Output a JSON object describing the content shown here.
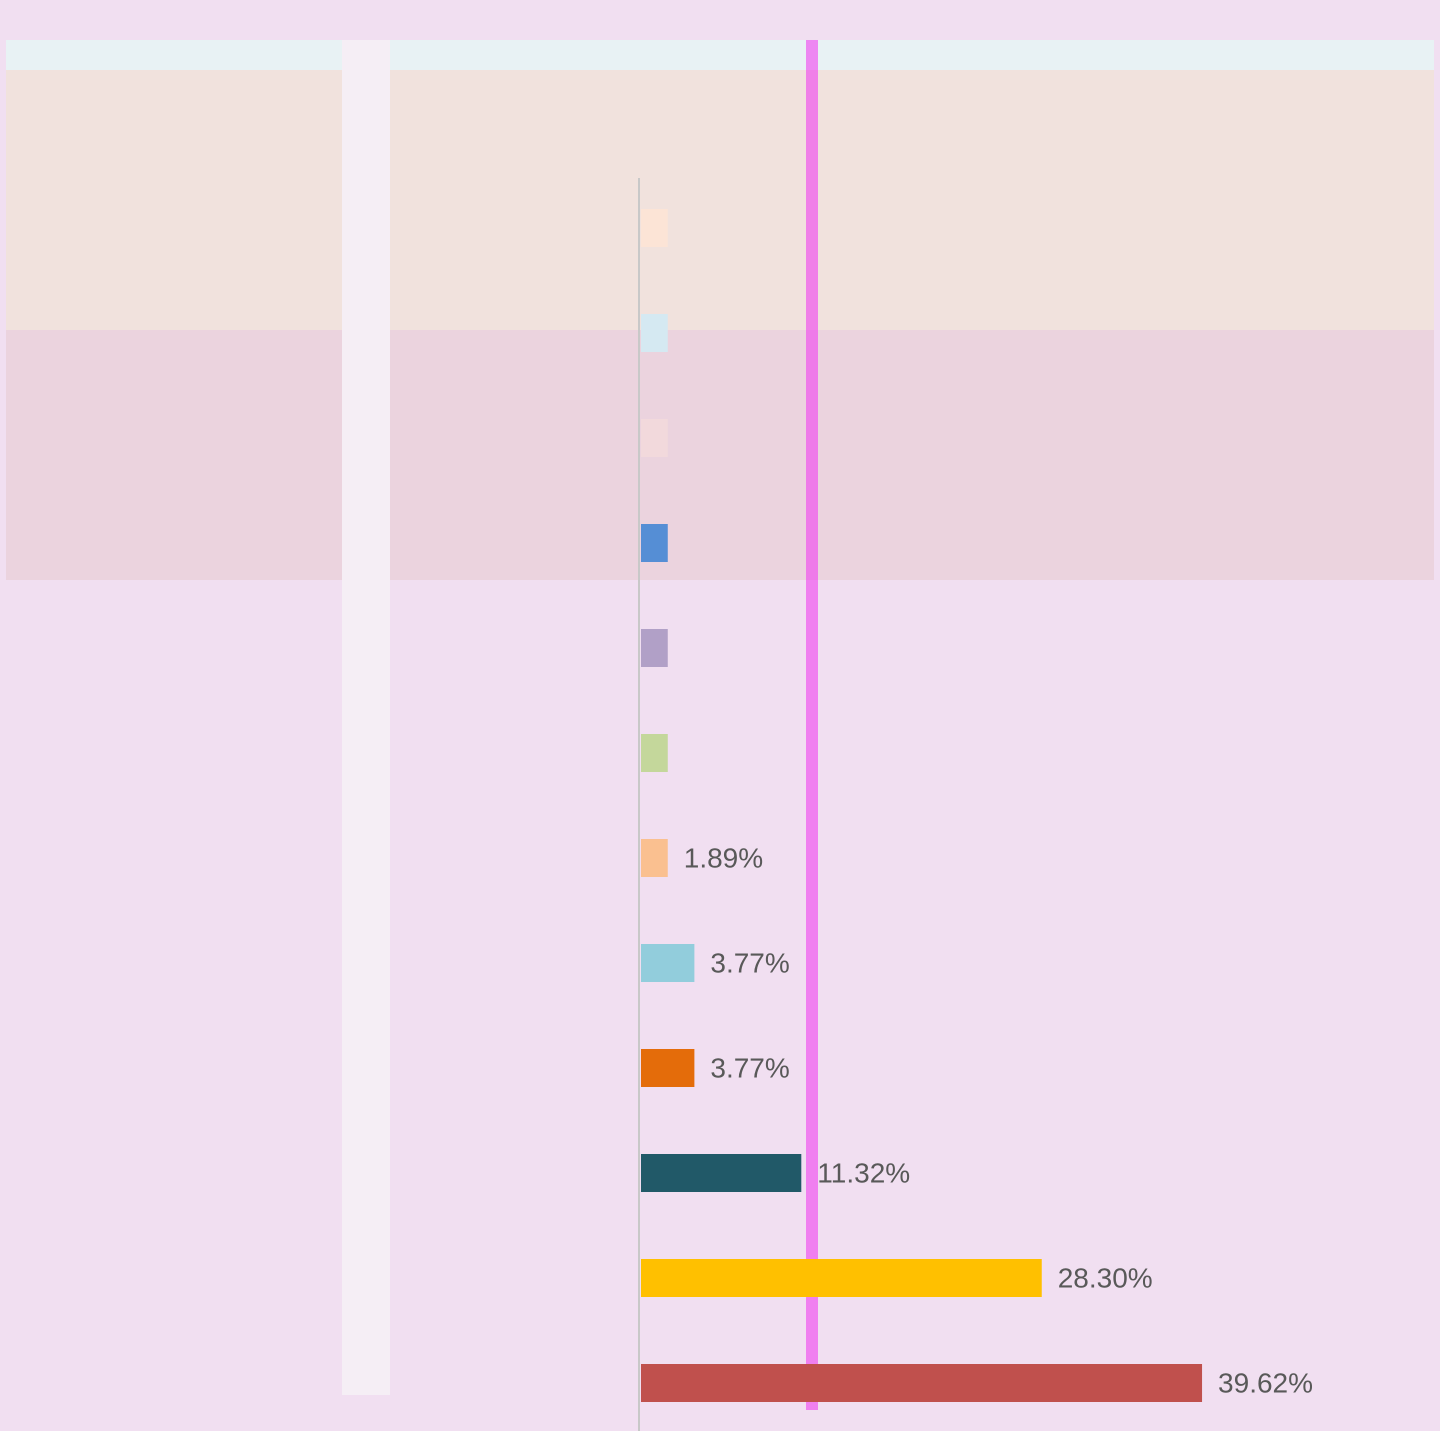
{
  "chart_data": {
    "type": "bar",
    "orientation": "horizontal",
    "categories": [
      null,
      null,
      null,
      null,
      null,
      null,
      null,
      null,
      null,
      null,
      null,
      null
    ],
    "series": [
      {
        "values": [
          1.89,
          1.89,
          1.89,
          1.89,
          1.89,
          1.89,
          1.89,
          3.77,
          3.77,
          11.32,
          28.3,
          39.62
        ],
        "value_labels": [
          null,
          null,
          null,
          null,
          null,
          null,
          "1.89%",
          "3.77%",
          "3.77%",
          "11.32%",
          "28.30%",
          "39.62%"
        ],
        "colors": [
          "#fce4d6",
          "#d5e9f2",
          "#f2d9dc",
          "#558ed5",
          "#b1a0c7",
          "#c4d79b",
          "#fac090",
          "#92cddc",
          "#e46c0a",
          "#215968",
          "#ffc000",
          "#c0504d"
        ]
      }
    ],
    "xlim": [
      0,
      56
    ]
  }
}
